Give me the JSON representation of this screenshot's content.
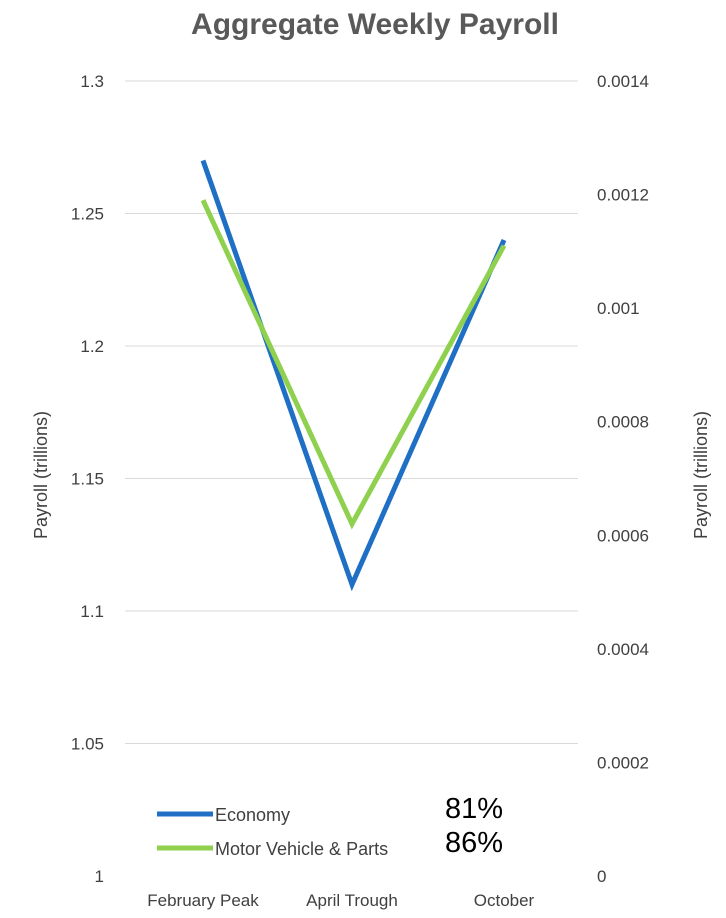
{
  "chart_data": {
    "type": "line",
    "title": "Aggregate Weekly Payroll",
    "categories": [
      "February Peak",
      "April Trough",
      "October"
    ],
    "y_left": {
      "label": "Payroll (trillions)",
      "ylim": [
        1,
        1.3
      ],
      "ticks": [
        "1",
        "1.05",
        "1.1",
        "1.15",
        "1.2",
        "1.25",
        "1.3"
      ]
    },
    "y_right": {
      "label": "Payroll (trillions)",
      "ylim": [
        0,
        0.0014
      ],
      "ticks": [
        "0",
        "0.0002",
        "0.0004",
        "0.0006",
        "0.0008",
        "0.001",
        "0.0012",
        "0.0014"
      ]
    },
    "series": [
      {
        "name": "Economy",
        "axis": "left",
        "color": "#1f6fc5",
        "values": [
          1.27,
          1.11,
          1.24
        ],
        "annotation": "81%"
      },
      {
        "name": "Motor Vehicle & Parts",
        "axis": "right",
        "color": "#8fd14f",
        "values": [
          0.00119,
          0.00062,
          0.00111
        ],
        "annotation": "86%"
      }
    ],
    "grid": true,
    "legend": "bottom-left"
  }
}
